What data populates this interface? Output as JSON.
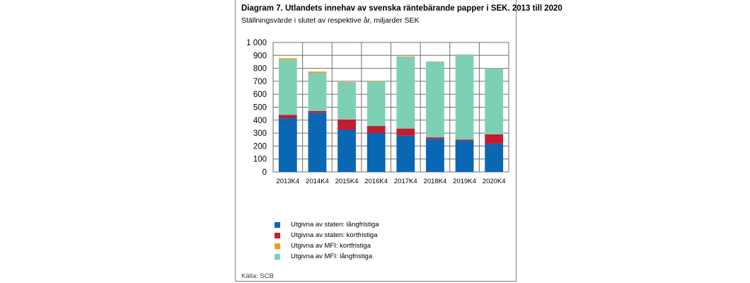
{
  "chart_data": {
    "type": "bar",
    "stacked": true,
    "title": "Diagram 7. Utlandets innehav av svenska räntebärande papper i SEK. 2013 till 2020",
    "subtitle": "Ställningsvärde i slutet av respektive år, miljarder SEK",
    "xlabel": "",
    "ylabel": "",
    "ylim": [
      0,
      1000
    ],
    "yticks": [
      0,
      100,
      200,
      300,
      400,
      500,
      600,
      700,
      800,
      900,
      1000
    ],
    "ytick_labels": [
      "0",
      "100",
      "200",
      "300",
      "400",
      "500",
      "600",
      "700",
      "800",
      "900",
      "1 000"
    ],
    "grid": true,
    "legend_position": "bottom",
    "categories": [
      "2013K4",
      "2014K4",
      "2015K4",
      "2016K4",
      "2017K4",
      "2018K4",
      "2019K4",
      "2020K4"
    ],
    "series": [
      {
        "name": "Utgivna av staten: långfristiga",
        "color": "#0a67b3",
        "values": [
          415,
          455,
          325,
          300,
          280,
          255,
          240,
          215
        ]
      },
      {
        "name": "Utgivna av staten: kortfristiga",
        "color": "#c01d2e",
        "values": [
          25,
          15,
          80,
          55,
          55,
          12,
          10,
          75
        ]
      },
      {
        "name": "Utgivna av MFI: långfristiga",
        "color": "#7dd0b6",
        "values": [
          428,
          295,
          285,
          345,
          553,
          583,
          655,
          510
        ]
      },
      {
        "name": "Utgivna av MFI: kortfristiga",
        "color": "#f29b1d",
        "values": [
          10,
          10,
          4,
          3,
          4,
          3,
          3,
          2
        ]
      }
    ],
    "legend_order": [
      0,
      1,
      3,
      2
    ],
    "source": "Källa: SCB"
  }
}
